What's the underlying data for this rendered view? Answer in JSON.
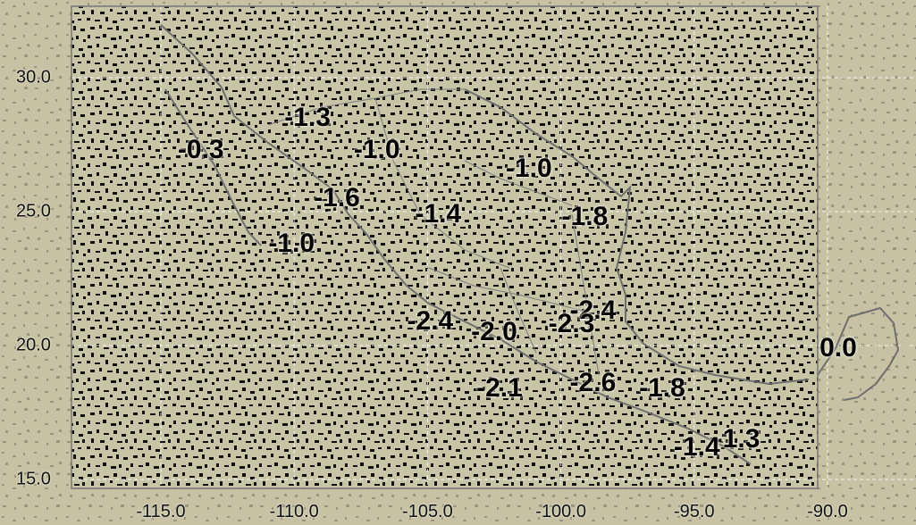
{
  "map": {
    "lon_range": [
      -115.0,
      -90.0
    ],
    "lat_range": [
      15.0,
      30.0
    ],
    "background_color": "#c8c4a6",
    "noise_color": "#111111",
    "coastline_color": "#6e6e6e",
    "grid_color": "#ffffff"
  },
  "x_ticks": [
    {
      "lon": -115.0,
      "label": "-115.0"
    },
    {
      "lon": -110.0,
      "label": "-110.0"
    },
    {
      "lon": -105.0,
      "label": "-105.0"
    },
    {
      "lon": -100.0,
      "label": "-100.0"
    },
    {
      "lon": -95.0,
      "label": "-95.0"
    },
    {
      "lon": -90.0,
      "label": "-90.0"
    }
  ],
  "y_ticks": [
    {
      "lat": 30.0,
      "label": "30.0"
    },
    {
      "lat": 25.0,
      "label": "25.0"
    },
    {
      "lat": 20.0,
      "label": "20.0"
    },
    {
      "lat": 15.0,
      "label": "15.0"
    }
  ],
  "stations": [
    {
      "value": "-0.3",
      "lon": -113.5,
      "lat": 27.3
    },
    {
      "value": "-1.3",
      "lon": -109.5,
      "lat": 28.5
    },
    {
      "value": "-1.0",
      "lon": -106.9,
      "lat": 27.3
    },
    {
      "value": "-1.6",
      "lon": -108.4,
      "lat": 25.5
    },
    {
      "value": "-1.0",
      "lon": -110.1,
      "lat": 23.8
    },
    {
      "value": "-1.4",
      "lon": -104.6,
      "lat": 24.9
    },
    {
      "value": "-1.0",
      "lon": -101.2,
      "lat": 26.6
    },
    {
      "value": "-1.8",
      "lon": -99.1,
      "lat": 24.8
    },
    {
      "value": "-2.4",
      "lon": -104.9,
      "lat": 20.9
    },
    {
      "value": "-2.4",
      "lon": -98.8,
      "lat": 21.3
    },
    {
      "value": "-2.3",
      "lon": -99.6,
      "lat": 20.8
    },
    {
      "value": "-2.0",
      "lon": -102.5,
      "lat": 20.5
    },
    {
      "value": "-2.1",
      "lon": -102.3,
      "lat": 18.4
    },
    {
      "value": "-2.6",
      "lon": -98.8,
      "lat": 18.6
    },
    {
      "value": "-1.8",
      "lon": -96.2,
      "lat": 18.4
    },
    {
      "value": "-1.3",
      "lon": -93.4,
      "lat": 16.5
    },
    {
      "value": "-1.4",
      "lon": -94.9,
      "lat": 16.2
    },
    {
      "value": "0.0",
      "lon": -89.6,
      "lat": 19.9
    }
  ]
}
